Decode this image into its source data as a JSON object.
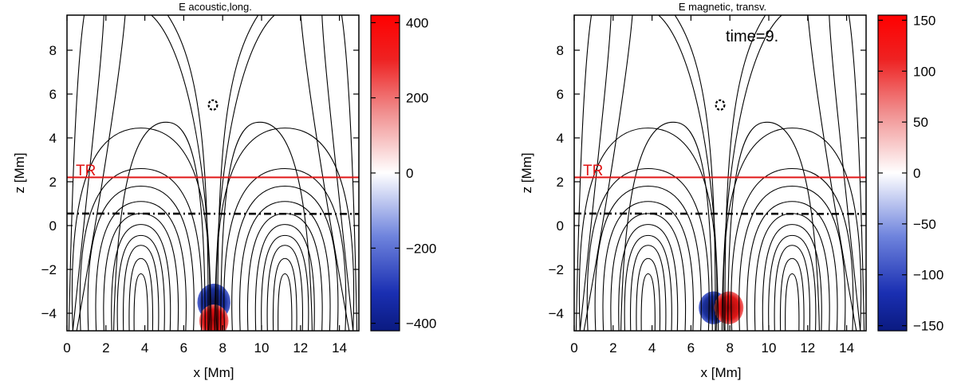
{
  "chart_data": [
    {
      "type": "heatmap",
      "title": "E acoustic,long.",
      "xlabel": "x [Mm]",
      "ylabel": "z [Mm]",
      "xlim": [
        0,
        15
      ],
      "ylim": [
        -4.8,
        9.6
      ],
      "xticks": [
        0,
        2,
        4,
        6,
        8,
        10,
        12,
        14
      ],
      "yticks": [
        -4,
        -2,
        0,
        2,
        4,
        6,
        8
      ],
      "tr_label": "TR",
      "tr_height": 2.2,
      "eq_height": 0.55,
      "null_point": {
        "x": 7.5,
        "z": 5.5
      },
      "colorbar": {
        "min": -420,
        "max": 420,
        "ticks": [
          -400,
          -200,
          0,
          200,
          400
        ],
        "low_color": "#0d1a8a",
        "high_color": "#ff0000"
      },
      "blobs": [
        {
          "x": 7.55,
          "z": -3.5,
          "r": 0.85,
          "sign": -1,
          "comment": "upper lobe (blue)"
        },
        {
          "x": 7.55,
          "z": -4.35,
          "r": 0.75,
          "sign": 1,
          "comment": "lower lobe (red)"
        }
      ]
    },
    {
      "type": "heatmap",
      "title": "E magnetic, transv.",
      "time_label": "time=9.",
      "xlabel": "x [Mm]",
      "ylabel": "z [Mm]",
      "xlim": [
        0,
        15
      ],
      "ylim": [
        -4.8,
        9.6
      ],
      "xticks": [
        0,
        2,
        4,
        6,
        8,
        10,
        12,
        14
      ],
      "yticks": [
        -4,
        -2,
        0,
        2,
        4,
        6,
        8
      ],
      "tr_label": "TR",
      "tr_height": 2.2,
      "eq_height": 0.55,
      "null_point": {
        "x": 7.5,
        "z": 5.5
      },
      "colorbar": {
        "min": -155,
        "max": 155,
        "ticks": [
          -150,
          -100,
          -50,
          0,
          50,
          100,
          150
        ],
        "low_color": "#0d1a8a",
        "high_color": "#ff0000"
      },
      "blobs": [
        {
          "x": 7.15,
          "z": -3.75,
          "r": 0.75,
          "sign": -1,
          "comment": "left lobe (blue)"
        },
        {
          "x": 7.95,
          "z": -3.75,
          "r": 0.75,
          "sign": 1,
          "comment": "right lobe (red)"
        }
      ]
    }
  ],
  "colors": {
    "field_line": "#000000",
    "tr_line": "#e01515",
    "equipartition_line": "#000000"
  }
}
